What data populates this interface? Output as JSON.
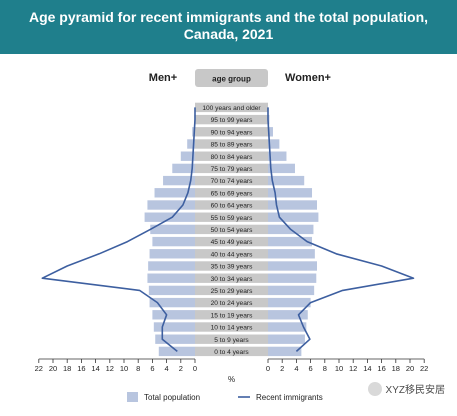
{
  "title": "Age pyramid for recent immigrants and the total population,",
  "subtitle": "Canada, 2021",
  "left_label": "Men+",
  "right_label": "Women+",
  "age_header": "age group",
  "x_unit": "%",
  "watermark": "XYZ移民安居",
  "colors": {
    "bar": "#b8c5df",
    "line": "#3d5fa0",
    "band": "#1f7f8c",
    "header": "#c8c8c8"
  },
  "chart_data": {
    "type": "bar",
    "orientation": "horizontal-pyramid",
    "categories": [
      "0 to 4 years",
      "5 to 9 years",
      "10 to 14 years",
      "15 to 19 years",
      "20 to 24 years",
      "25 to 29 years",
      "30 to 34 years",
      "35 to 39 years",
      "40 to 44 years",
      "45 to 49 years",
      "50 to 54 years",
      "55 to 59 years",
      "60 to 64 years",
      "65 to 69 years",
      "70 to 74 years",
      "75 to 79 years",
      "80 to 84 years",
      "85 to 89 years",
      "90 to 94 years",
      "95 to 99 years",
      "100 years and older"
    ],
    "x_ticks": [
      22,
      20,
      18,
      16,
      14,
      12,
      10,
      8,
      6,
      4,
      2,
      0
    ],
    "xlim": [
      0,
      22
    ],
    "series": [
      {
        "name": "Total population",
        "kind": "bar",
        "men": [
          5.1,
          5.6,
          5.8,
          6.0,
          6.4,
          6.5,
          6.7,
          6.6,
          6.4,
          6.0,
          6.3,
          7.1,
          6.7,
          5.7,
          4.5,
          3.2,
          2.0,
          1.1,
          0.4,
          0.1,
          0.0
        ],
        "women": [
          4.7,
          5.2,
          5.4,
          5.6,
          6.0,
          6.5,
          6.8,
          6.9,
          6.6,
          6.2,
          6.4,
          7.1,
          6.9,
          6.2,
          5.1,
          3.8,
          2.6,
          1.6,
          0.7,
          0.2,
          0.0
        ]
      },
      {
        "name": "Recent immigrants",
        "kind": "line",
        "men": [
          2.5,
          4.6,
          4.6,
          4.0,
          5.3,
          7.8,
          21.5,
          18.0,
          13.5,
          9.5,
          6.3,
          3.2,
          1.7,
          1.0,
          0.6,
          0.4,
          0.3,
          0.2,
          0.1,
          0.0,
          0.0
        ],
        "women": [
          4.0,
          5.9,
          5.0,
          4.3,
          6.0,
          10.5,
          20.5,
          16.0,
          9.6,
          5.5,
          3.2,
          1.6,
          1.2,
          1.0,
          0.6,
          0.4,
          0.3,
          0.2,
          0.1,
          0.0,
          0.0
        ]
      }
    ]
  }
}
